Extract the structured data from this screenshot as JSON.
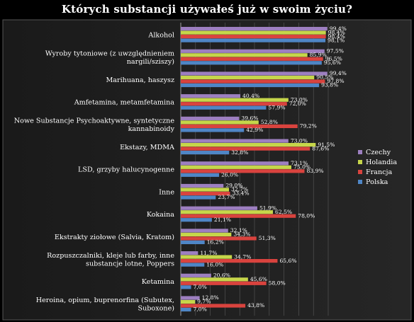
{
  "chart_data": {
    "type": "bar",
    "orientation": "horizontal",
    "title": "Których substancji używałeś już w swoim życiu?",
    "xlim": [
      0,
      100
    ],
    "grid": true,
    "legend_position": "right",
    "categories": [
      "Alkohol",
      "Wyroby tytoniowe (z uwzględnieniem nargili/sziszy)",
      "Marihuana, haszysz",
      "Amfetamina, metamfetamina",
      "Nowe Substancje Psychoaktywne, syntetyczne kannabinoidy",
      "Ekstazy, MDMA",
      "LSD, grzyby halucynogenne",
      "Inne",
      "Kokaina",
      "Ekstrakty ziołowe (Salvia, Kratom)",
      "Rozpuszczalniki, kleje lub farby, inne substancje lotne, Poppers",
      "Ketamina",
      "Heroina, opium, buprenorfina (Subutex, Suboxone)"
    ],
    "category_lines": [
      [
        "Alkohol"
      ],
      [
        "Wyroby tytoniowe (z uwzględnieniem",
        "nargili/sziszy)"
      ],
      [
        "Marihuana, haszysz"
      ],
      [
        "Amfetamina, metamfetamina"
      ],
      [
        "Nowe Substancje Psychoaktywne, syntetyczne",
        "kannabinoidy"
      ],
      [
        "Ekstazy, MDMA"
      ],
      [
        "LSD, grzyby halucynogenne"
      ],
      [
        "Inne"
      ],
      [
        "Kokaina"
      ],
      [
        "Ekstrakty ziołowe (Salvia, Kratom)"
      ],
      [
        "Rozpuszczalniki, kleje lub farby, inne",
        "substancje lotne, Poppers"
      ],
      [
        "Ketamina"
      ],
      [
        "Heroina, opium, buprenorfina (Subutex,",
        "Suboxone)"
      ]
    ],
    "series": [
      {
        "name": "Czechy",
        "color": "#9d7fc0",
        "values": [
          99.4,
          97.5,
          99.4,
          40.4,
          39.6,
          73.0,
          73.1,
          29.0,
          51.9,
          32.1,
          11.7,
          20.6,
          12.8
        ]
      },
      {
        "name": "Holandia",
        "color": "#c6d64a",
        "values": [
          98.4,
          85.9,
          90.5,
          73.0,
          52.8,
          91.5,
          75.0,
          32.7,
          62.5,
          34.3,
          34.7,
          45.6,
          9.7
        ]
      },
      {
        "name": "Francja",
        "color": "#d9433e",
        "values": [
          98.4,
          96.5,
          97.8,
          72.0,
          79.2,
          87.6,
          83.9,
          33.4,
          78.0,
          51.3,
          65.6,
          58.0,
          43.8
        ]
      },
      {
        "name": "Polska",
        "color": "#4f86c6",
        "values": [
          98.1,
          95.6,
          93.8,
          57.9,
          42.9,
          32.8,
          26.0,
          23.7,
          21.1,
          16.2,
          16.0,
          7.0,
          7.0
        ]
      }
    ],
    "data_labels": [
      [
        "99,4%",
        "98,4%",
        "98,4%",
        "98,1%"
      ],
      [
        "97,5%",
        "85,9%",
        "96,5%",
        "95,6%"
      ],
      [
        "99,4%",
        "90,5%",
        "97,8%",
        "93,8%"
      ],
      [
        "40,4%",
        "73,0%",
        "72,0%",
        "57,9%"
      ],
      [
        "39,6%",
        "52,8%",
        "79,2%",
        "42,9%"
      ],
      [
        "73,0%",
        "91,5%",
        "87,6%",
        "32,8%"
      ],
      [
        "73,1%",
        "75,0%",
        "83,9%",
        "26,0%"
      ],
      [
        "29,0%",
        "32,7%",
        "33,4%",
        "23,7%"
      ],
      [
        "51,9%",
        "62,5%",
        "78,0%",
        "21,1%"
      ],
      [
        "32,1%",
        "34,3%",
        "51,3%",
        "16,2%"
      ],
      [
        "11,7%",
        "34,7%",
        "65,6%",
        "16,0%"
      ],
      [
        "20,6%",
        "45,6%",
        "58,0%",
        "7,0%"
      ],
      [
        "12,8%",
        "9,7%",
        "43,8%",
        "7,0%"
      ]
    ]
  }
}
